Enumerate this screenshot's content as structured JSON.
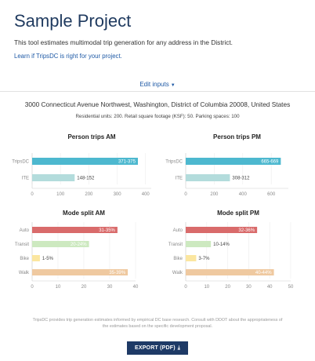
{
  "header": {
    "title": "Sample Project",
    "intro": "This tool estimates multimodal trip generation for any address in the District.",
    "learn_link": "Learn if TripsDC is right for your project."
  },
  "inputs_toggle": {
    "label": "Edit inputs",
    "icon": "caret-down-icon"
  },
  "project": {
    "address": "3000 Connecticut Avenue Northwest, Washington, District of Columbia 20008, United States",
    "summary": "Residential units: 200. Retail square footage (KSF): 50. Parking spaces: 100"
  },
  "colors": {
    "tripsdc": "#4db8cf",
    "ite": "#b3dcdc",
    "auto": "#d96b6b",
    "transit": "#cde9c0",
    "bike": "#fbe6a0",
    "walk": "#efc9a0"
  },
  "chart_data": [
    {
      "type": "bar",
      "orientation": "horizontal",
      "title": "Person trips AM",
      "categories": [
        "TripsDC",
        "ITE"
      ],
      "values": [
        373,
        150
      ],
      "labels": [
        "371-375",
        "148-152"
      ],
      "xlim": [
        0,
        420
      ],
      "xticks": [
        0,
        100,
        200,
        300,
        400
      ]
    },
    {
      "type": "bar",
      "orientation": "horizontal",
      "title": "Person trips PM",
      "categories": [
        "TripsDC",
        "ITE"
      ],
      "values": [
        667,
        310
      ],
      "labels": [
        "665-669",
        "308-312"
      ],
      "xlim": [
        0,
        720
      ],
      "xticks": [
        0,
        200,
        400,
        600
      ]
    },
    {
      "type": "bar",
      "orientation": "horizontal",
      "title": "Mode split AM",
      "categories": [
        "Auto",
        "Transit",
        "Bike",
        "Walk"
      ],
      "values": [
        33,
        22,
        3,
        37
      ],
      "labels": [
        "31-35%",
        "20-24%",
        "1-5%",
        "35-39%"
      ],
      "xlim": [
        0,
        40
      ],
      "xticks": [
        0,
        10,
        20,
        30,
        40
      ]
    },
    {
      "type": "bar",
      "orientation": "horizontal",
      "title": "Mode split PM",
      "categories": [
        "Auto",
        "Transit",
        "Bike",
        "Walk"
      ],
      "values": [
        34,
        12,
        5,
        42
      ],
      "labels": [
        "32-36%",
        "10-14%",
        "3-7%",
        "40-44%"
      ],
      "xlim": [
        0,
        50
      ],
      "xticks": [
        0,
        10,
        20,
        30,
        40,
        50
      ]
    }
  ],
  "footer": {
    "note": "TripsDC provides trip generation estimates informed by empirical DC base research. Consult with DDOT about the appropriateness of the estimates based on the specific development proposal.",
    "export_label": "EXPORT (PDF)",
    "export_icon": "download-circle-icon"
  }
}
